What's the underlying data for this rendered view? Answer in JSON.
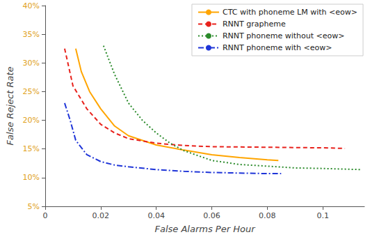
{
  "chart_data": {
    "type": "line",
    "x_label": "False Alarms Per Hour",
    "y_label": "False Reject Rate",
    "xlim": [
      0,
      0.115
    ],
    "xticks": [
      0,
      0.02,
      0.04,
      0.06,
      0.08,
      0.1
    ],
    "ylim": [
      5,
      40
    ],
    "yticks": [
      {
        "value": 5,
        "label": "5%"
      },
      {
        "value": 10,
        "label": "10%"
      },
      {
        "value": 15,
        "label": "15%"
      },
      {
        "value": 20,
        "label": "20%"
      },
      {
        "value": 25,
        "label": "25%"
      },
      {
        "value": 30,
        "label": "30%"
      },
      {
        "value": 35,
        "label": "35%"
      },
      {
        "value": 40,
        "label": "40%"
      }
    ],
    "grid": false,
    "legend": "upper right",
    "series": [
      {
        "name": "CTC with phoneme LM with <eow>",
        "color": "#ffa500",
        "line_style": "solid",
        "x": [
          0.011,
          0.013,
          0.016,
          0.02,
          0.025,
          0.03,
          0.04,
          0.05,
          0.06,
          0.07,
          0.08,
          0.084
        ],
        "values": [
          32.5,
          28.5,
          25,
          22,
          19,
          17.3,
          15.7,
          14.8,
          14,
          13.5,
          13.1,
          13
        ]
      },
      {
        "name": "RNNT grapheme",
        "color": "#e8221c",
        "line_style": "dashed",
        "x": [
          0.007,
          0.01,
          0.015,
          0.02,
          0.025,
          0.03,
          0.04,
          0.05,
          0.06,
          0.08,
          0.1,
          0.108
        ],
        "values": [
          32.5,
          26,
          22,
          19.3,
          17.8,
          16.8,
          16,
          15.6,
          15.4,
          15.3,
          15.2,
          15.1
        ]
      },
      {
        "name": "RNNT phoneme without <eow>",
        "color": "#2a8a2a",
        "line_style": "dotted",
        "x": [
          0.021,
          0.025,
          0.03,
          0.035,
          0.04,
          0.045,
          0.05,
          0.06,
          0.07,
          0.08,
          0.09,
          0.1,
          0.114
        ],
        "values": [
          33,
          28,
          23,
          20,
          17.8,
          16,
          14.7,
          13,
          12.3,
          12,
          11.7,
          11.6,
          11.4
        ]
      },
      {
        "name": "RNNT phoneme with <eow>",
        "color": "#1f35d8",
        "line_style": "dashdot",
        "x": [
          0.007,
          0.009,
          0.011,
          0.015,
          0.02,
          0.025,
          0.03,
          0.04,
          0.05,
          0.06,
          0.07,
          0.08,
          0.085
        ],
        "values": [
          23,
          20,
          16.5,
          14,
          12.8,
          12.2,
          11.9,
          11.4,
          11.1,
          10.9,
          10.8,
          10.7,
          10.7
        ]
      }
    ]
  }
}
